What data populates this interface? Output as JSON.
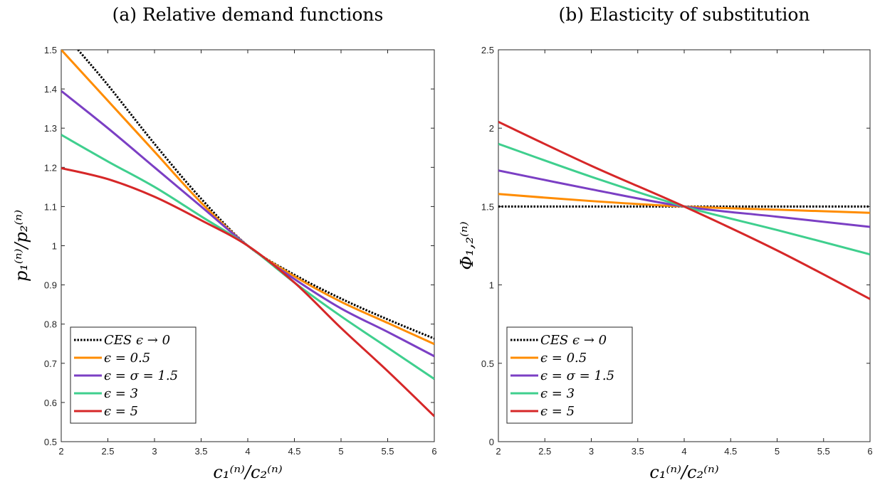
{
  "chart_data": [
    {
      "type": "line",
      "title": "(a) Relative demand functions",
      "xlabel": "c₁⁽ⁿ⁾/c₂⁽ⁿ⁾",
      "ylabel": "p₁⁽ⁿ⁾/p₂⁽ⁿ⁾",
      "xlim": [
        2,
        6
      ],
      "ylim": [
        0.5,
        1.5
      ],
      "xticks": [
        "2",
        "2.5",
        "3",
        "3.5",
        "4",
        "4.5",
        "5",
        "5.5",
        "6"
      ],
      "yticks": [
        "0.5",
        "0.6",
        "0.7",
        "0.8",
        "0.9",
        "1",
        "1.1",
        "1.2",
        "1.3",
        "1.4",
        "1.5"
      ],
      "grid": false,
      "legend_position": "bottom-left",
      "series": [
        {
          "name": "CES ϵ → 0",
          "color": "#000000",
          "dash": "dotted",
          "x": [
            2.18,
            2.5,
            3,
            3.5,
            4,
            4.5,
            5,
            5.5,
            6
          ],
          "y": [
            1.5,
            1.41,
            1.26,
            1.12,
            1.0,
            0.926,
            0.865,
            0.812,
            0.763
          ]
        },
        {
          "name": "ϵ = 0.5",
          "color": "#ff8c00",
          "x": [
            2,
            2.5,
            3,
            3.5,
            4,
            4.5,
            5,
            5.5,
            6
          ],
          "y": [
            1.5,
            1.37,
            1.24,
            1.11,
            1.0,
            0.922,
            0.857,
            0.803,
            0.749
          ]
        },
        {
          "name": "ϵ = σ = 1.5",
          "color": "#7b3fc4",
          "x": [
            2,
            2.5,
            3,
            3.5,
            4,
            4.5,
            5,
            5.5,
            6
          ],
          "y": [
            1.395,
            1.3,
            1.2,
            1.1,
            1.0,
            0.915,
            0.84,
            0.78,
            0.718
          ]
        },
        {
          "name": "ϵ = 3",
          "color": "#3fcf8e",
          "x": [
            2,
            2.5,
            3,
            3.5,
            4,
            4.5,
            5,
            5.5,
            6
          ],
          "y": [
            1.283,
            1.215,
            1.15,
            1.075,
            1.0,
            0.906,
            0.82,
            0.74,
            0.66
          ]
        },
        {
          "name": "ϵ = 5",
          "color": "#d62728",
          "x": [
            2,
            2.5,
            3,
            3.5,
            4,
            4.5,
            5,
            5.5,
            6
          ],
          "y": [
            1.198,
            1.17,
            1.125,
            1.065,
            1.0,
            0.906,
            0.79,
            0.68,
            0.565
          ]
        }
      ]
    },
    {
      "type": "line",
      "title": "(b) Elasticity of substitution",
      "xlabel": "c₁⁽ⁿ⁾/c₂⁽ⁿ⁾",
      "ylabel": "Φ₁,₂⁽ⁿ⁾",
      "xlim": [
        2,
        6
      ],
      "ylim": [
        0,
        2.5
      ],
      "xticks": [
        "2",
        "2.5",
        "3",
        "3.5",
        "4",
        "4.5",
        "5",
        "5.5",
        "6"
      ],
      "yticks": [
        "0",
        "0.5",
        "1",
        "1.5",
        "2",
        "2.5"
      ],
      "grid": false,
      "legend_position": "bottom-left",
      "series": [
        {
          "name": "CES ϵ → 0",
          "color": "#000000",
          "dash": "dotted",
          "x": [
            2,
            6
          ],
          "y": [
            1.5,
            1.5
          ]
        },
        {
          "name": "ϵ = 0.5",
          "color": "#ff8c00",
          "x": [
            2,
            3,
            4,
            5,
            6
          ],
          "y": [
            1.58,
            1.535,
            1.5,
            1.48,
            1.46
          ]
        },
        {
          "name": "ϵ = σ = 1.5",
          "color": "#7b3fc4",
          "x": [
            2,
            3,
            4,
            5,
            6
          ],
          "y": [
            1.73,
            1.61,
            1.5,
            1.435,
            1.37
          ]
        },
        {
          "name": "ϵ = 3",
          "color": "#3fcf8e",
          "x": [
            2,
            3,
            4,
            5,
            6
          ],
          "y": [
            1.9,
            1.69,
            1.5,
            1.35,
            1.195
          ]
        },
        {
          "name": "ϵ = 5",
          "color": "#d62728",
          "x": [
            2,
            3,
            4,
            5,
            6
          ],
          "y": [
            2.04,
            1.76,
            1.5,
            1.22,
            0.91
          ]
        }
      ]
    }
  ]
}
